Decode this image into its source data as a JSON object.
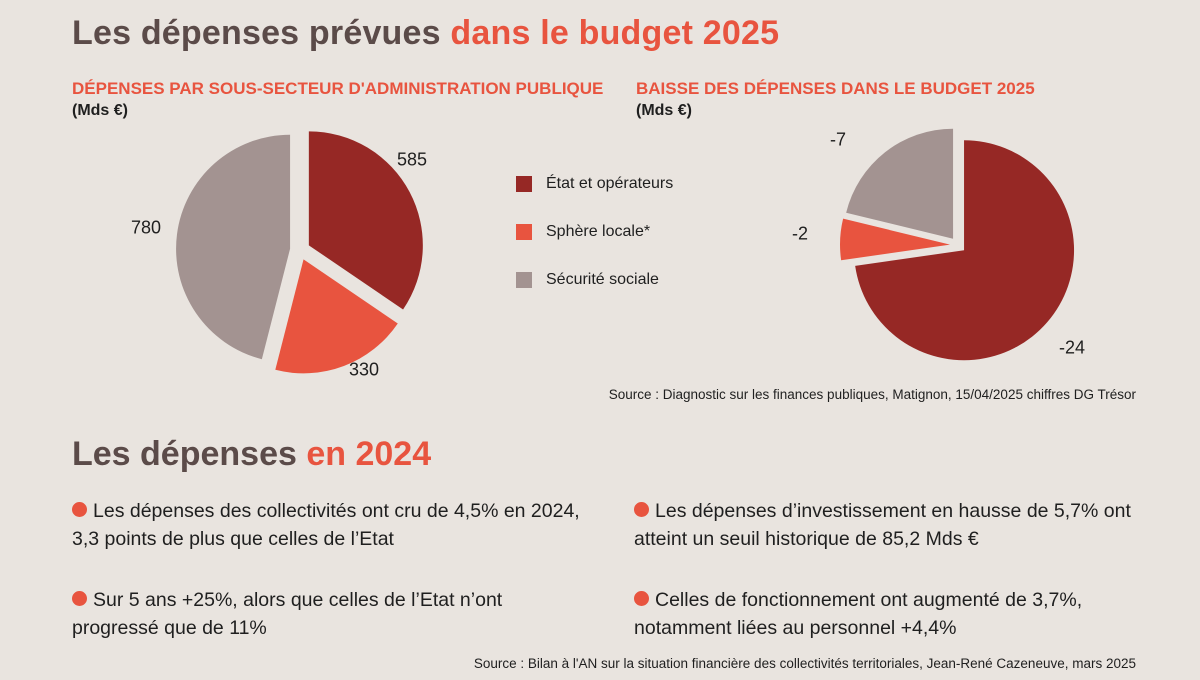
{
  "header": {
    "title_main": "Les dépenses prévues",
    "title_accent": "dans le budget 2025"
  },
  "left_chart": {
    "subtitle": "DÉPENSES PAR SOUS-SECTEUR D'ADMINISTRATION PUBLIQUE",
    "unit": "(Mds €)"
  },
  "right_chart": {
    "subtitle": "BAISSE DES DÉPENSES DANS LE BUDGET 2025",
    "unit": "(Mds €)"
  },
  "legend": [
    {
      "label": "État et opérateurs",
      "color": "#962825"
    },
    {
      "label": "Sphère locale*",
      "color": "#e8543f"
    },
    {
      "label": "Sécurité sociale",
      "color": "#a39391"
    }
  ],
  "chart_data": [
    {
      "type": "pie",
      "title": "DÉPENSES PAR SOUS-SECTEUR D'ADMINISTRATION PUBLIQUE",
      "unit": "Mds €",
      "categories": [
        "État et opérateurs",
        "Sphère locale*",
        "Sécurité sociale"
      ],
      "values": [
        585,
        330,
        780
      ],
      "value_labels": [
        "585",
        "330",
        "780"
      ],
      "colors": [
        "#962825",
        "#e8543f",
        "#a39391"
      ]
    },
    {
      "type": "pie",
      "title": "BAISSE DES DÉPENSES DANS LE BUDGET 2025",
      "unit": "Mds €",
      "categories": [
        "État et opérateurs",
        "Sphère locale*",
        "Sécurité sociale"
      ],
      "values": [
        -24,
        -2,
        -7
      ],
      "value_labels": [
        "-24",
        "-2",
        "-7"
      ],
      "colors": [
        "#962825",
        "#e8543f",
        "#a39391"
      ]
    }
  ],
  "source_top": "Source : Diagnostic sur les finances publiques, Matignon, 15/04/2025 chiffres DG Trésor",
  "section2": {
    "title_main": "Les dépenses",
    "title_accent": "en 2024"
  },
  "bullets": [
    "Les dépenses des collectivités ont cru de 4,5% en 2024, 3,3 points de plus que celles de l’Etat",
    "Les dépenses d’investissement en hausse de 5,7% ont atteint un seuil historique de 85,2 Mds €",
    "Sur 5 ans +25%, alors que celles de l’Etat n’ont progressé que de 11%",
    "Celles de fonctionnement ont augmenté de 3,7%, notamment liées au personnel +4,4%"
  ],
  "source_bottom": "Source : Bilan à l'AN sur la situation financière des collectivités territoriales, Jean-René Cazeneuve, mars 2025"
}
